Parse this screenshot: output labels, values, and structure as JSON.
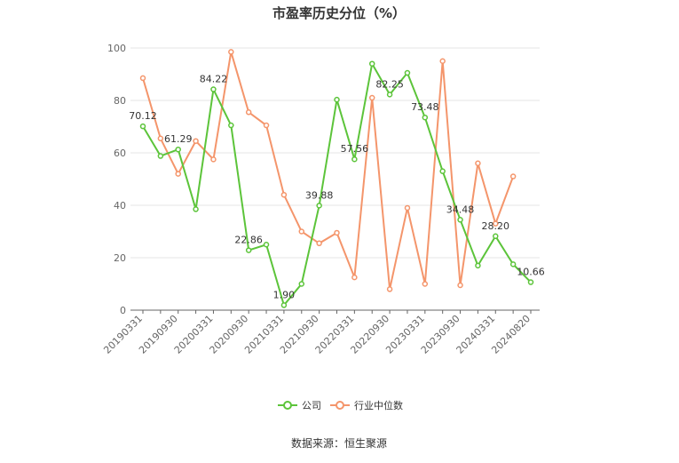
{
  "chart_data": {
    "type": "line",
    "title": "市盈率历史分位（%）",
    "source": "数据来源：恒生聚源",
    "ylim": [
      0,
      100
    ],
    "yticks": [
      0,
      20,
      40,
      60,
      80,
      100
    ],
    "grid": true,
    "legend_position": "bottom",
    "x": [
      "20190331",
      "20190630",
      "20190930",
      "20191231",
      "20200331",
      "20200630",
      "20200930",
      "20201231",
      "20210331",
      "20210630",
      "20210930",
      "20211231",
      "20220331",
      "20220630",
      "20220930",
      "20221231",
      "20230331",
      "20230630",
      "20230930",
      "20231231",
      "20240331",
      "20240630",
      "20240820"
    ],
    "xtick_labels": [
      "20190331",
      "20190930",
      "20200331",
      "20200930",
      "20210331",
      "20210930",
      "20220331",
      "20220930",
      "20230331",
      "20230930",
      "20240331",
      "20240820"
    ],
    "series": [
      {
        "name": "公司",
        "color": "#5cc43a",
        "values": [
          70.12,
          58.8,
          61.29,
          38.5,
          84.22,
          70.5,
          22.86,
          25.0,
          1.9,
          10.0,
          39.88,
          80.3,
          57.56,
          94.0,
          82.25,
          90.5,
          73.48,
          53.0,
          34.48,
          17.0,
          28.2,
          17.5,
          10.66
        ],
        "labels": [
          "70.12",
          null,
          "61.29",
          null,
          "84.22",
          null,
          "22.86",
          null,
          "1.90",
          null,
          "39.88",
          null,
          "57.56",
          null,
          "82.25",
          null,
          "73.48",
          null,
          "34.48",
          null,
          "28.20",
          null,
          "10.66"
        ]
      },
      {
        "name": "行业中位数",
        "color": "#f4956b",
        "values": [
          88.5,
          65.5,
          52.0,
          64.5,
          57.5,
          98.5,
          75.5,
          70.5,
          44.0,
          30.0,
          25.5,
          29.5,
          12.5,
          81.0,
          8.0,
          39.0,
          10.0,
          95.0,
          9.5,
          56.0,
          33.0,
          51.0,
          null
        ],
        "labels": []
      }
    ]
  }
}
